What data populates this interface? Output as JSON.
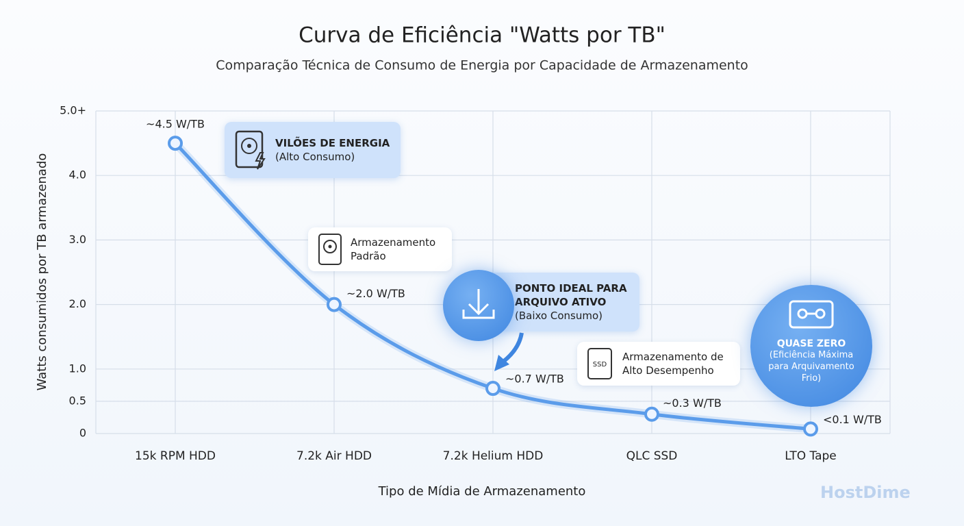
{
  "chart_data": {
    "type": "line",
    "title": "Curva de Eficiência \"Watts por TB\"",
    "subtitle": "Comparação Técnica de Consumo de Energia por Capacidade de Armazenamento",
    "x_label": "Tipo de Mídia de Armazenamento",
    "y_label": "Watts consumidos por TB armazenado",
    "categories": [
      "15k RPM HDD",
      "7.2k Air HDD",
      "7.2k Helium HDD",
      "QLC SSD",
      "LTO Tape"
    ],
    "values": [
      4.5,
      2.0,
      0.7,
      0.3,
      0.07
    ],
    "value_labels": [
      "~4.5 W/TB",
      "~2.0 W/TB",
      "~0.7 W/TB",
      "~0.3 W/TB",
      "<0.1 W/TB"
    ],
    "color": "#5b9cea",
    "ylim": [
      0,
      5
    ],
    "yticks": [
      0,
      {
        "value": 0.5,
        "label": "0.5"
      },
      {
        "value": 1,
        "label": "1.0"
      },
      {
        "value": 2,
        "label": "2.0"
      },
      {
        "value": 3,
        "label": "3.0"
      },
      {
        "value": 4,
        "label": "4.0"
      },
      {
        "value": 5,
        "label": "5.0+"
      }
    ],
    "grid": true,
    "annotations": [
      {
        "title": "VILÕES DE ENERGIA",
        "text": "(Alto Consumo)"
      },
      {
        "lines": [
          "Armazenamento",
          "Padrão"
        ]
      },
      {
        "title_lines": [
          "PONTO IDEAL PARA",
          "ARQUIVO ATIVO"
        ],
        "text": "(Baixo Consumo)"
      },
      {
        "icon_text": "SSD",
        "lines": [
          "Armazenamento de",
          "Alto Desempenho"
        ]
      },
      {
        "title": "QUASE ZERO",
        "text_lines": [
          "(Eficiência Máxima",
          "para Arquivamento",
          "Frio)"
        ]
      }
    ],
    "logo": "HostDime"
  }
}
